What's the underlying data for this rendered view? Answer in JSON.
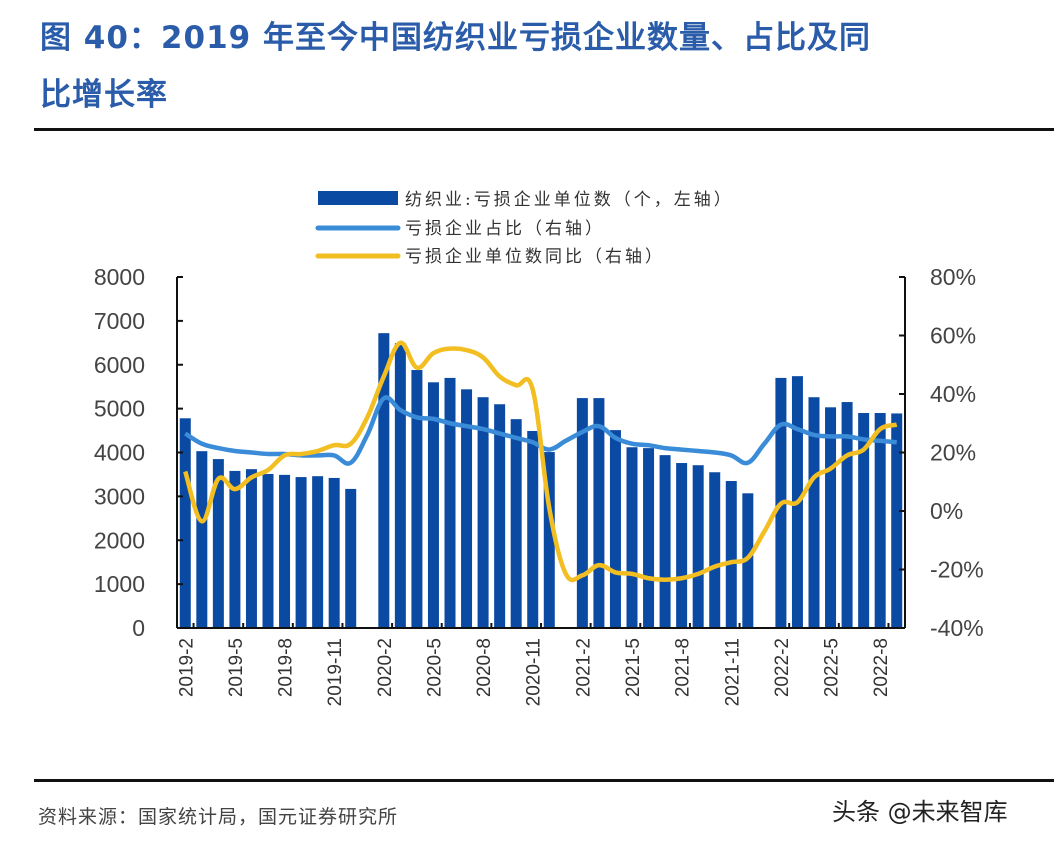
{
  "header": {
    "title_line1": "图 40：2019 年至今中国纺织业亏损企业数量、占比及同",
    "title_line2": "比增长率"
  },
  "footer": {
    "source": "资料来源：国家统计局，国元证券研究所",
    "watermark": "头条 @未来智库"
  },
  "colors": {
    "bar": "#0b4aa2",
    "share_line": "#3a8cd8",
    "yoy_line": "#f2be22",
    "title": "#2a5caa"
  },
  "chart_data": {
    "type": "bar",
    "title": "2019年至今中国纺织业亏损企业数量、占比及同比增长率",
    "legend_position": "top-center",
    "legend": [
      "纺织业:亏损企业单位数（个，左轴）",
      "亏损企业占比（右轴）",
      "亏损企业单位数同比（右轴）"
    ],
    "y_left": {
      "min": 0,
      "max": 8000,
      "ticks": [
        "0",
        "1000",
        "2000",
        "3000",
        "4000",
        "5000",
        "6000",
        "7000",
        "8000"
      ]
    },
    "y_right": {
      "min": -40,
      "max": 80,
      "ticks": [
        "-40%",
        "-20%",
        "0%",
        "20%",
        "40%",
        "60%",
        "80%"
      ]
    },
    "x_tick_labels": [
      "2019-2",
      "2019-5",
      "2019-8",
      "2019-11",
      "2020-2",
      "2020-5",
      "2020-8",
      "2020-11",
      "2021-2",
      "2021-5",
      "2021-8",
      "2021-11",
      "2022-2",
      "2022-5",
      "2022-8"
    ],
    "categories": [
      "2019-2",
      "2019-3",
      "2019-4",
      "2019-5",
      "2019-6",
      "2019-7",
      "2019-8",
      "2019-9",
      "2019-10",
      "2019-11",
      "2019-12",
      "2020-1",
      "2020-2",
      "2020-3",
      "2020-4",
      "2020-5",
      "2020-6",
      "2020-7",
      "2020-8",
      "2020-9",
      "2020-10",
      "2020-11",
      "2020-12",
      "2021-1",
      "2021-2",
      "2021-3",
      "2021-4",
      "2021-5",
      "2021-6",
      "2021-7",
      "2021-8",
      "2021-9",
      "2021-10",
      "2021-11",
      "2021-12",
      "2022-1",
      "2022-2",
      "2022-3",
      "2022-4",
      "2022-5",
      "2022-6",
      "2022-7",
      "2022-8",
      "2022-9"
    ],
    "series": [
      {
        "name": "纺织业:亏损企业单位数（个，左轴）",
        "type": "bar",
        "axis": "left",
        "values": [
          4780,
          4030,
          3850,
          3580,
          3620,
          3510,
          3490,
          3440,
          3460,
          3420,
          3170,
          null,
          6720,
          6490,
          5880,
          5600,
          5700,
          5440,
          5260,
          5100,
          4760,
          4490,
          4010,
          null,
          5240,
          5240,
          4510,
          4120,
          4100,
          3940,
          3760,
          3710,
          3550,
          3350,
          3070,
          null,
          5700,
          5740,
          5260,
          5030,
          5150,
          4900,
          4900,
          4890
        ]
      },
      {
        "name": "亏损企业占比（右轴）",
        "type": "line",
        "axis": "right",
        "unit": "%",
        "values": [
          26.5,
          23.0,
          21.5,
          20.5,
          20.0,
          19.5,
          19.5,
          19.0,
          19.0,
          19.0,
          16.5,
          26.0,
          38.5,
          34.5,
          32.0,
          31.5,
          30.0,
          29.0,
          28.0,
          26.5,
          25.0,
          23.5,
          21.0,
          24.0,
          27.0,
          29.0,
          25.0,
          23.0,
          22.5,
          21.5,
          21.0,
          20.5,
          20.0,
          19.0,
          16.5,
          23.0,
          29.5,
          28.0,
          26.0,
          25.5,
          25.5,
          24.5,
          24.0,
          23.5
        ]
      },
      {
        "name": "亏损企业单位数同比（右轴）",
        "type": "line",
        "axis": "right",
        "unit": "%",
        "values": [
          13.5,
          -3.5,
          11.0,
          7.5,
          11.5,
          14.0,
          19.0,
          19.5,
          20.5,
          22.5,
          23.0,
          32.0,
          46.0,
          57.5,
          49.0,
          54.0,
          55.5,
          55.0,
          52.5,
          46.0,
          43.0,
          41.5,
          1.0,
          -21.5,
          -22.0,
          -18.5,
          -21.0,
          -21.5,
          -23.0,
          -23.5,
          -23.0,
          -21.5,
          -19.0,
          -17.5,
          -16.0,
          -7.0,
          2.5,
          3.0,
          11.5,
          14.5,
          19.0,
          21.0,
          28.0,
          29.5
        ]
      }
    ],
    "xlabel": "",
    "ylabel_left": "",
    "ylabel_right": ""
  }
}
